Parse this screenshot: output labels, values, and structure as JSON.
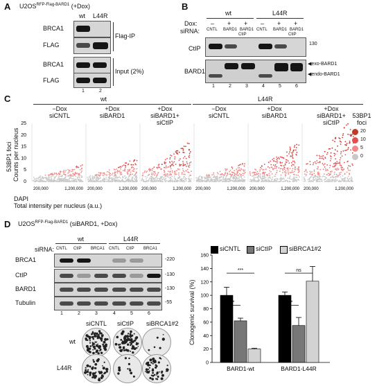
{
  "panelA": {
    "letter": "A",
    "cell_line": "U2OS",
    "cell_sup": "RFP-Flag-BARD1",
    "cell_suffix": " (+Dox)",
    "col_wt": "wt",
    "col_mut": "L44R",
    "row_brca1_ip": "BRCA1",
    "row_flag_ip": "FLAG",
    "row_brca1_in": "BRCA1",
    "row_flag_in": "FLAG",
    "group_ip": "Flag-IP",
    "group_input": "Input (2%)",
    "lane1": "1",
    "lane2": "2"
  },
  "panelB": {
    "letter": "B",
    "col_wt": "wt",
    "col_mut": "L44R",
    "dox_label": "Dox:",
    "sirna_label": "siRNA:",
    "dox": [
      "–",
      "+",
      "+",
      "–",
      "+",
      "+"
    ],
    "sirna": [
      "CNTL",
      "BARD1",
      "BARD1",
      "CNTL",
      "BARD1",
      "BARD1"
    ],
    "sirna_extra3": "CtIP",
    "sirna_extra6": "CtIP",
    "row_ctip": "CtIP",
    "row_bard1": "BARD1",
    "mw130": "130",
    "exo": "exo-BARD1",
    "endo": "endo-BARD1",
    "lanes": [
      "1",
      "2",
      "3",
      "4",
      "5",
      "6"
    ]
  },
  "panelC": {
    "letter": "C",
    "group_wt": "wt",
    "group_mut": "L44R",
    "conditions": [
      {
        "l1": "−Dox",
        "l2": "siCNTL",
        "l3": ""
      },
      {
        "l1": "+Dox",
        "l2": "siBARD1",
        "l3": ""
      },
      {
        "l1": "+Dox",
        "l2": "siBARD1+",
        "l3": "siCtIP"
      },
      {
        "l1": "−Dox",
        "l2": "siCNTL",
        "l3": ""
      },
      {
        "l1": "+Dox",
        "l2": "siBARD1",
        "l3": ""
      },
      {
        "l1": "+Dox",
        "l2": "siBARD1+",
        "l3": "siCtIP"
      }
    ],
    "ylabel1": "53BP1 foci",
    "ylabel2": "Counts per nucleus",
    "yticks": [
      "25",
      "20",
      "15",
      "10",
      "5",
      "0"
    ],
    "xtick_low": "200,000",
    "xtick_high": "1,200,000",
    "xlabel_dapi": "DAPI",
    "xlabel": "Total intensity per nucleus (a.u.)",
    "legend_title": "53BP1 foci",
    "legend": [
      {
        "label": "20",
        "color": "#c0392b"
      },
      {
        "label": "10",
        "color": "#e05050"
      },
      {
        "label": "5",
        "color": "#f08a8a"
      },
      {
        "label": "0",
        "color": "#c8c8c8"
      }
    ]
  },
  "panelD": {
    "letter": "D",
    "cell_line": "U2OS",
    "cell_sup": "RFP-Flag-BARD1",
    "cell_suffix": " (siBARD1, +Dox)",
    "col_wt": "wt",
    "col_mut": "L44R",
    "sirna_label": "siRNA:",
    "sirna": [
      "CNTL",
      "CtIP",
      "BRCA1",
      "CNTL",
      "CtIP",
      "BRCA1"
    ],
    "rows": [
      "BRCA1",
      "CtIP",
      "BARD1",
      "Tubulin"
    ],
    "mw": [
      "220",
      "130",
      "130",
      "55"
    ],
    "lanes": [
      "1",
      "2",
      "3",
      "4",
      "5",
      "6"
    ],
    "dish_cols": [
      "siCNTL",
      "siCtIP",
      "siBRCA1#2"
    ],
    "dish_rows": [
      "wt",
      "L44R"
    ]
  },
  "chart_data": {
    "type": "bar",
    "categories": [
      "BARD1-wt",
      "BARD1-L44R"
    ],
    "series": [
      {
        "name": "siCNTL",
        "values": [
          100,
          100
        ],
        "errors": [
          12,
          5
        ],
        "color": "#000000"
      },
      {
        "name": "siCtIP",
        "values": [
          62,
          55
        ],
        "errors": [
          4,
          12
        ],
        "color": "#777777"
      },
      {
        "name": "siBRCA1#2",
        "values": [
          20,
          121
        ],
        "errors": [
          1,
          22
        ],
        "color": "#d3d3d3"
      }
    ],
    "ylabel": "Clonogenic survival (%)",
    "ylim": [
      0,
      160
    ],
    "yticks": [
      0,
      20,
      40,
      60,
      80,
      100,
      120,
      140,
      160
    ],
    "significance": [
      {
        "group": 0,
        "from": 0,
        "to": 1,
        "label": "*"
      },
      {
        "group": 0,
        "from": 0,
        "to": 2,
        "label": "***"
      },
      {
        "group": 1,
        "from": 0,
        "to": 1,
        "label": "*"
      },
      {
        "group": 1,
        "from": 0,
        "to": 2,
        "label": "ns"
      }
    ],
    "legend_placement": "top"
  }
}
